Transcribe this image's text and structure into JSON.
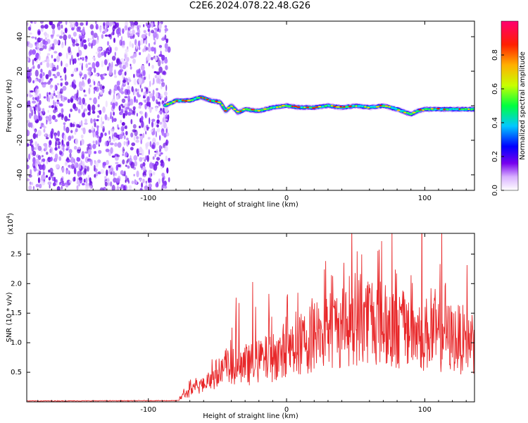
{
  "title": "C2E6.2024.078.22.48.G26",
  "chart_data": [
    {
      "type": "heatmap",
      "xlabel": "Height of straight line (km)",
      "ylabel": "Frequency (Hz)",
      "xlim": [
        -188,
        136
      ],
      "ylim": [
        -49,
        49
      ],
      "x_ticks": [
        -100,
        0,
        100
      ],
      "y_ticks": [
        -40,
        -20,
        0,
        20,
        40
      ],
      "noise_region_x": [
        -188,
        -88
      ],
      "signal_track": {
        "x": [
          -88,
          -80,
          -70,
          -62,
          -55,
          -48,
          -44,
          -40,
          -35,
          -30,
          -20,
          -10,
          0,
          10,
          20,
          30,
          40,
          50,
          60,
          70,
          80,
          90,
          95,
          100,
          110,
          120,
          130,
          136
        ],
        "y": [
          0,
          3,
          3,
          5,
          3,
          2,
          -3,
          0,
          -4,
          -2,
          -3,
          -1,
          0,
          -1,
          -1,
          0,
          -1,
          0,
          -1,
          0,
          -2,
          -5,
          -3,
          -2,
          -2,
          -2,
          -2,
          -2
        ]
      },
      "colorbar": {
        "label": "Normalized spectral amplitude",
        "range": [
          0.0,
          1.0
        ],
        "ticks": [
          "0.0",
          "0.2",
          "0.4",
          "0.6",
          "0.8"
        ],
        "colors": [
          "#ffffff",
          "#cc88ff",
          "#7700ee",
          "#0000ff",
          "#00d0ff",
          "#00ff40",
          "#ffff00",
          "#ff8800",
          "#ff0000",
          "#ff0080"
        ]
      },
      "colors": {
        "strong": "#ff0000",
        "noise": "#7a22ee"
      }
    },
    {
      "type": "line",
      "xlabel": "Height of straight line (km)",
      "ylabel": "SNR (10 * v/v)",
      "scale_note": "(x10",
      "scale_exp": "4",
      "scale_close": ")",
      "xlim": [
        -188,
        136
      ],
      "ylim": [
        0,
        28500
      ],
      "x_ticks": [
        -100,
        0,
        100
      ],
      "y_ticks": [
        "0.5",
        "1.0",
        "1.5",
        "2.0",
        "2.5"
      ],
      "y_tick_values": [
        5000,
        10000,
        15000,
        20000,
        25000
      ],
      "line_color": "#e8282a",
      "envelope": {
        "x": [
          -188,
          -78,
          -75,
          -70,
          -60,
          -50,
          -40,
          -30,
          -20,
          -10,
          0,
          10,
          20,
          30,
          40,
          50,
          60,
          70,
          80,
          90,
          100,
          110,
          120,
          130,
          136
        ],
        "y": [
          150,
          200,
          1500,
          2000,
          4000,
          6000,
          7000,
          7500,
          8500,
          9500,
          10000,
          12000,
          14000,
          15000,
          16000,
          17000,
          18000,
          16500,
          15500,
          14500,
          14500,
          14000,
          13500,
          13000,
          13000
        ]
      }
    }
  ]
}
